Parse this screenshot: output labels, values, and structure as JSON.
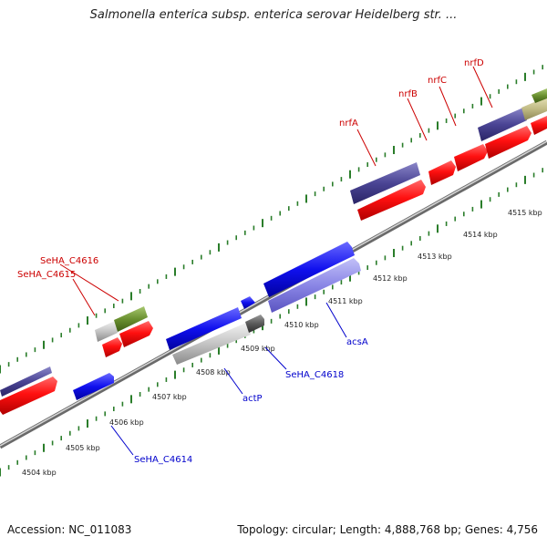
{
  "title": "Salmonella enterica subsp. enterica serovar Heidelberg str. ...",
  "footer": {
    "accession": "Accession: NC_011083",
    "stats": "Topology: circular; Length: 4,888,768 bp; Genes: 4,756"
  },
  "colors": {
    "backbone": "#8c8c8c",
    "tick": "#2a7d2a",
    "forward_label": "#cc0000",
    "reverse_label": "#0000cc",
    "kbp_label": "#222222"
  },
  "kbp_labels": [
    "4504 kbp",
    "4505 kbp",
    "4506 kbp",
    "4507 kbp",
    "4508 kbp",
    "4509 kbp",
    "4510 kbp",
    "4511 kbp",
    "4512 kbp",
    "4513 kbp",
    "4514 kbp",
    "4515 kbp"
  ],
  "forward_gene_labels": [
    "SeHA_C4616",
    "SeHA_C4615",
    "nrfA",
    "nrfB",
    "nrfC",
    "nrfD"
  ],
  "reverse_gene_labels": [
    "actP",
    "SeHA_C4618",
    "acsA",
    "SeHA_C4614"
  ]
}
